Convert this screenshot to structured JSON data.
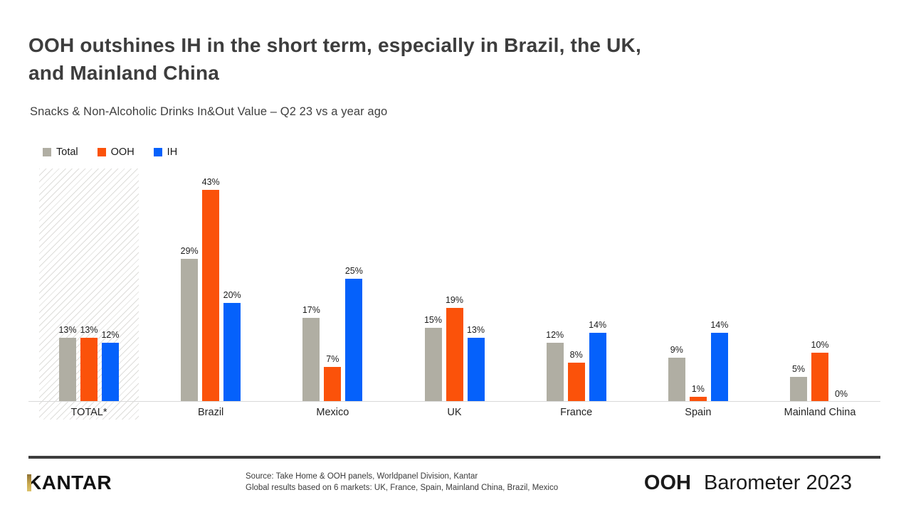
{
  "header": {
    "title_line1": "OOH outshines IH in the short term, especially in Brazil, the UK,",
    "title_line2": "and Mainland China",
    "subtitle": "Snacks & Non-Alcoholic Drinks In&Out Value – Q2 23 vs a year ago"
  },
  "legend": [
    {
      "label": "Total",
      "color": "#b0aea3"
    },
    {
      "label": "OOH",
      "color": "#fb520a"
    },
    {
      "label": "IH",
      "color": "#0561fb"
    }
  ],
  "chart_data": {
    "type": "bar",
    "title": "Snacks & Non-Alcoholic Drinks In&Out Value – Q2 23 vs a year ago",
    "categories": [
      "TOTAL*",
      "Brazil",
      "Mexico",
      "UK",
      "France",
      "Spain",
      "Mainland China"
    ],
    "series": [
      {
        "name": "Total",
        "color": "#b0aea3",
        "values": [
          13,
          29,
          17,
          15,
          12,
          9,
          5
        ]
      },
      {
        "name": "OOH",
        "color": "#fb520a",
        "values": [
          13,
          43,
          7,
          19,
          8,
          1,
          10
        ]
      },
      {
        "name": "IH",
        "color": "#0561fb",
        "values": [
          12,
          20,
          25,
          13,
          14,
          14,
          0
        ]
      }
    ],
    "value_suffix": "%",
    "ylim": [
      0,
      45
    ],
    "grid": false,
    "legend_position": "top-left",
    "highlighted_category": "TOTAL*",
    "highlight_style": "diagonal-hatch-background"
  },
  "footer": {
    "logo_text": "KANTAR",
    "source_line1": "Source: Take Home & OOH panels, Worldpanel Division, Kantar",
    "source_line2": "Global results based on 6 markets: UK, France, Spain, Mainland China, Brazil, Mexico",
    "brand_bold": "OOH",
    "brand_regular": "Barometer 2023"
  },
  "colors": {
    "total_gray": "#b0aea3",
    "ooh_orange": "#fb520a",
    "ih_blue": "#0561fb",
    "title_text": "#3d3d3d",
    "axis_line": "#d9d9d9",
    "hatch_line": "#a8a69e",
    "footer_divider": "#3d3d3d",
    "logo_gold": "#c9a94e"
  }
}
